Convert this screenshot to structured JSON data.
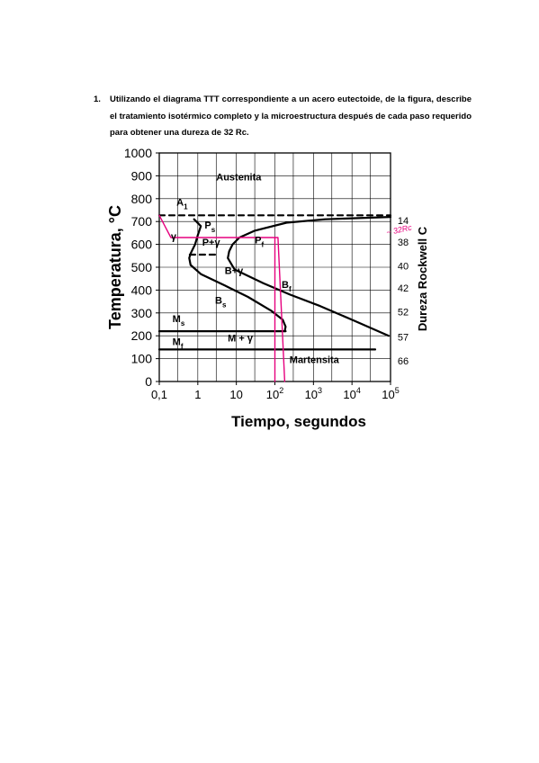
{
  "question": {
    "number": "1.",
    "text": "Utilizando el diagrama TTT correspondiente a un acero eutectoide, de la figura, describe el tratamiento isotérmico completo y la microestructura después de cada paso requerido para obtener una dureza de 32 Rc."
  },
  "chart_data": {
    "type": "line",
    "ylabel": "Temperatura, °C",
    "xlabel": "Tiempo, segundos",
    "y2label": "Dureza Rockwell C",
    "x_scale": "log",
    "xlim": [
      0.1,
      100000
    ],
    "ylim": [
      0,
      1000
    ],
    "grid": true,
    "y_ticks": [
      "0",
      "100",
      "200",
      "300",
      "400",
      "500",
      "600",
      "700",
      "800",
      "900",
      "1000"
    ],
    "x_tick_labels": [
      {
        "base": "0,1",
        "exp": ""
      },
      {
        "base": "1",
        "exp": ""
      },
      {
        "base": "10",
        "exp": ""
      },
      {
        "base": "10",
        "exp": "2"
      },
      {
        "base": "10",
        "exp": "3"
      },
      {
        "base": "10",
        "exp": "4"
      },
      {
        "base": "10",
        "exp": "5"
      }
    ],
    "hardness_scale": [
      {
        "label": "14",
        "temp": 705
      },
      {
        "label": "38",
        "temp": 610
      },
      {
        "label": "40",
        "temp": 505
      },
      {
        "label": "42",
        "temp": 410
      },
      {
        "label": "52",
        "temp": 305
      },
      {
        "label": "57",
        "temp": 195
      },
      {
        "label": "66",
        "temp": 90
      }
    ],
    "region_labels": [
      {
        "main": "Austenita",
        "sub": "",
        "x": 3,
        "y": 880
      },
      {
        "main": "A",
        "sub": "1",
        "x": 0.28,
        "y": 770
      },
      {
        "main": "P",
        "sub": "s",
        "x": 1.5,
        "y": 670
      },
      {
        "main": "γ",
        "sub": "",
        "x": 0.2,
        "y": 620
      },
      {
        "main": "P+γ",
        "sub": "",
        "x": 1.3,
        "y": 595
      },
      {
        "main": "P",
        "sub": "f",
        "x": 30,
        "y": 605
      },
      {
        "main": "B+γ",
        "sub": "",
        "x": 5,
        "y": 470
      },
      {
        "main": "B",
        "sub": "f",
        "x": 150,
        "y": 410
      },
      {
        "main": "B",
        "sub": "s",
        "x": 2.8,
        "y": 340
      },
      {
        "main": "M",
        "sub": "s",
        "x": 0.22,
        "y": 260
      },
      {
        "main": "M + γ",
        "sub": "",
        "x": 6,
        "y": 175
      },
      {
        "main": "M",
        "sub": "f",
        "x": 0.22,
        "y": 160
      },
      {
        "main": "Martensita",
        "sub": "",
        "x": 240,
        "y": 80
      }
    ],
    "series": [
      {
        "role": "start_curve",
        "points": [
          [
            0.8,
            710
          ],
          [
            1.2,
            680
          ],
          [
            1.0,
            640
          ],
          [
            0.85,
            600
          ],
          [
            0.65,
            560
          ],
          [
            0.6,
            540
          ],
          [
            0.65,
            510
          ],
          [
            1.2,
            470
          ],
          [
            5,
            420
          ],
          [
            20,
            370
          ],
          [
            80,
            310
          ],
          [
            160,
            270
          ],
          [
            190,
            240
          ],
          [
            180,
            220
          ]
        ]
      },
      {
        "role": "finish_curve",
        "points": [
          [
            100000,
            720
          ],
          [
            2000,
            710
          ],
          [
            200,
            695
          ],
          [
            30,
            660
          ],
          [
            12,
            630
          ],
          [
            8,
            600
          ],
          [
            6.5,
            570
          ],
          [
            6,
            540
          ],
          [
            9,
            490
          ],
          [
            50,
            430
          ],
          [
            250,
            380
          ],
          [
            1500,
            330
          ],
          [
            10000,
            270
          ],
          [
            90000,
            200
          ]
        ]
      },
      {
        "role": "A1",
        "style": "dashed",
        "points": [
          [
            0.1,
            727
          ],
          [
            100000,
            727
          ]
        ]
      },
      {
        "role": "Ms",
        "points": [
          [
            0.1,
            220
          ],
          [
            190,
            220
          ]
        ]
      },
      {
        "role": "Mf",
        "points": [
          [
            0.1,
            140
          ],
          [
            40000,
            140
          ]
        ]
      },
      {
        "role": "pearlite_dashed",
        "style": "dashed",
        "points": [
          [
            0.62,
            555
          ],
          [
            3,
            555
          ]
        ]
      },
      {
        "role": "treatment_path",
        "color": "#e6007e",
        "points": [
          [
            0.1,
            727
          ],
          [
            0.2,
            630
          ],
          [
            120,
            630
          ],
          [
            180,
            0
          ]
        ]
      },
      {
        "role": "treatment_path_2",
        "color": "#e6007e",
        "points": [
          [
            100,
            0
          ],
          [
            100,
            630
          ]
        ]
      }
    ],
    "annotation": {
      "text": "~ 32Rc",
      "color": "#e6007e"
    }
  }
}
